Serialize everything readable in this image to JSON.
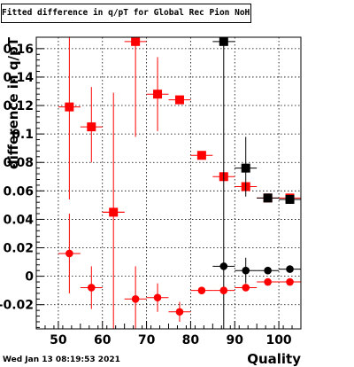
{
  "title": "Fitted difference in q/pT for Global Rec Pion NoHits",
  "timestamp": "Wed Jan 13 08:19:53 2021",
  "chart_data": {
    "type": "scatter",
    "title": "Fitted difference in q/pT for Global Rec Pion NoHits",
    "xlabel": "Quality",
    "ylabel": "difference in q/pT",
    "xlim": [
      45,
      105
    ],
    "ylim": [
      -0.037,
      0.168
    ],
    "grid": true,
    "x_ticks": [
      50,
      60,
      70,
      80,
      90,
      100
    ],
    "y_ticks": [
      -0.02,
      0,
      0.02,
      0.04,
      0.06,
      0.08,
      0.1,
      0.12,
      0.14,
      0.16
    ],
    "y_tick_labels": [
      "-0.02",
      "0",
      "0.02",
      "0.04",
      "0.06",
      "0.08",
      "0.1",
      "0.12",
      "0.14",
      "0.16"
    ],
    "series": [
      {
        "color": "#ff0000",
        "marker": "square",
        "points": [
          {
            "x": 52.5,
            "y": 0.119,
            "yerr_low": 0.054,
            "yerr_high": 0.168,
            "xerr": 2.5
          },
          {
            "x": 57.5,
            "y": 0.105,
            "yerr_low": 0.08,
            "yerr_high": 0.133,
            "xerr": 2.5
          },
          {
            "x": 62.5,
            "y": 0.045,
            "yerr_low": -0.037,
            "yerr_high": 0.129,
            "xerr": 2.5
          },
          {
            "x": 67.5,
            "y": 0.165,
            "yerr_low": 0.098,
            "yerr_high": 0.168,
            "xerr": 2.5
          },
          {
            "x": 72.5,
            "y": 0.128,
            "yerr_low": 0.102,
            "yerr_high": 0.154,
            "xerr": 2.5
          },
          {
            "x": 77.5,
            "y": 0.124,
            "yerr_low": 0.124,
            "yerr_high": 0.124,
            "xerr": 2.5
          },
          {
            "x": 82.5,
            "y": 0.085,
            "yerr_low": 0.085,
            "yerr_high": 0.085,
            "xerr": 2.5
          },
          {
            "x": 87.5,
            "y": 0.07,
            "yerr_low": 0.07,
            "yerr_high": 0.07,
            "xerr": 2.5
          },
          {
            "x": 92.5,
            "y": 0.063,
            "yerr_low": 0.063,
            "yerr_high": 0.063,
            "xerr": 2.5
          },
          {
            "x": 97.5,
            "y": 0.055,
            "yerr_low": 0.055,
            "yerr_high": 0.055,
            "xerr": 2.5
          },
          {
            "x": 102.5,
            "y": 0.055,
            "yerr_low": 0.055,
            "yerr_high": 0.055,
            "xerr": 2.5
          }
        ]
      },
      {
        "color": "#000000",
        "marker": "square",
        "points": [
          {
            "x": 87.5,
            "y": 0.165,
            "yerr_low": -0.037,
            "yerr_high": 0.168,
            "xerr": 2.5
          },
          {
            "x": 92.5,
            "y": 0.076,
            "yerr_low": 0.056,
            "yerr_high": 0.098,
            "xerr": 2.5
          },
          {
            "x": 97.5,
            "y": 0.055,
            "yerr_low": 0.055,
            "yerr_high": 0.055,
            "xerr": 2.5
          },
          {
            "x": 102.5,
            "y": 0.054,
            "yerr_low": 0.054,
            "yerr_high": 0.054,
            "xerr": 2.5
          }
        ]
      },
      {
        "color": "#ff0000",
        "marker": "circle",
        "points": [
          {
            "x": 52.5,
            "y": 0.016,
            "yerr_low": -0.012,
            "yerr_high": 0.044,
            "xerr": 2.5
          },
          {
            "x": 57.5,
            "y": -0.008,
            "yerr_low": -0.023,
            "yerr_high": 0.007,
            "xerr": 2.5
          },
          {
            "x": 62.5,
            "y": 0.045,
            "yerr_low": 0.045,
            "yerr_high": 0.045,
            "xerr": 2.5
          },
          {
            "x": 67.5,
            "y": -0.016,
            "yerr_low": -0.037,
            "yerr_high": 0.007,
            "xerr": 2.5
          },
          {
            "x": 72.5,
            "y": -0.015,
            "yerr_low": -0.025,
            "yerr_high": -0.005,
            "xerr": 2.5
          },
          {
            "x": 77.5,
            "y": -0.025,
            "yerr_low": -0.032,
            "yerr_high": -0.018,
            "xerr": 2.5
          },
          {
            "x": 82.5,
            "y": -0.01,
            "yerr_low": -0.01,
            "yerr_high": -0.01,
            "xerr": 2.5
          },
          {
            "x": 87.5,
            "y": -0.01,
            "yerr_low": -0.01,
            "yerr_high": -0.01,
            "xerr": 2.5
          },
          {
            "x": 92.5,
            "y": -0.008,
            "yerr_low": -0.008,
            "yerr_high": -0.008,
            "xerr": 2.5
          },
          {
            "x": 97.5,
            "y": -0.004,
            "yerr_low": -0.004,
            "yerr_high": -0.004,
            "xerr": 2.5
          },
          {
            "x": 102.5,
            "y": -0.004,
            "yerr_low": -0.004,
            "yerr_high": -0.004,
            "xerr": 2.5
          }
        ]
      },
      {
        "color": "#000000",
        "marker": "circle",
        "points": [
          {
            "x": 87.5,
            "y": 0.007,
            "yerr_low": 0.007,
            "yerr_high": 0.007,
            "xerr": 2.5
          },
          {
            "x": 92.5,
            "y": 0.004,
            "yerr_low": -0.005,
            "yerr_high": 0.013,
            "xerr": 2.5
          },
          {
            "x": 97.5,
            "y": 0.004,
            "yerr_low": 0.004,
            "yerr_high": 0.004,
            "xerr": 2.5
          },
          {
            "x": 102.5,
            "y": 0.005,
            "yerr_low": 0.005,
            "yerr_high": 0.005,
            "xerr": 2.5
          }
        ]
      }
    ]
  }
}
